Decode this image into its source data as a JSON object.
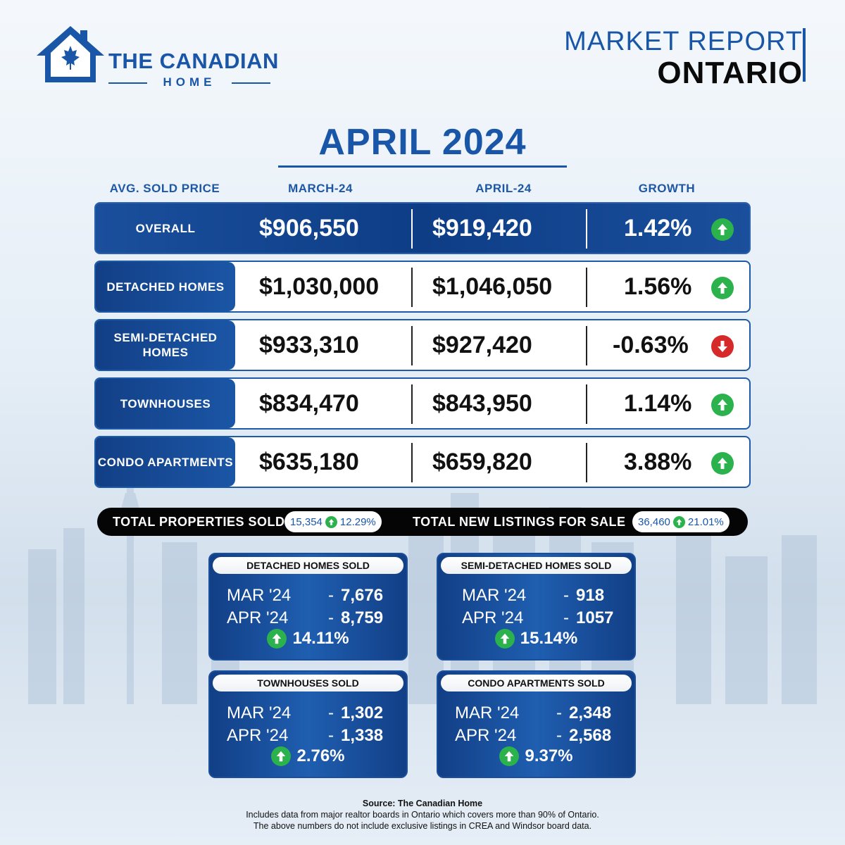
{
  "brand": {
    "line1": "THE CANADIAN",
    "line2": "HOME",
    "colors": {
      "primary": "#1a56a8",
      "up": "#2bb24c",
      "down": "#d62a2a"
    }
  },
  "report": {
    "line1": "MARKET REPORT",
    "line2": "ONTARIO"
  },
  "month": "APRIL 2024",
  "columns": {
    "label": "AVG. SOLD PRICE",
    "march": "MARCH-24",
    "april": "APRIL-24",
    "growth": "GROWTH"
  },
  "rows": [
    {
      "label": "OVERALL",
      "march": "$906,550",
      "april": "$919,420",
      "growth": "1.42%",
      "direction": "up"
    },
    {
      "label": "DETACHED HOMES",
      "march": "$1,030,000",
      "april": "$1,046,050",
      "growth": "1.56%",
      "direction": "up"
    },
    {
      "label": "SEMI-DETACHED HOMES",
      "march": "$933,310",
      "april": "$927,420",
      "growth": "-0.63%",
      "direction": "down"
    },
    {
      "label": "TOWNHOUSES",
      "march": "$834,470",
      "april": "$843,950",
      "growth": "1.14%",
      "direction": "up"
    },
    {
      "label": "CONDO APARTMENTS",
      "march": "$635,180",
      "april": "$659,820",
      "growth": "3.88%",
      "direction": "up"
    }
  ],
  "totals": {
    "sold_label": "TOTAL PROPERTIES SOLD",
    "sold_value": "15,354",
    "sold_growth": "12.29%",
    "listings_label": "TOTAL NEW LISTINGS FOR SALE",
    "listings_value": "36,460",
    "listings_growth": "21.01%"
  },
  "cards": [
    {
      "title": "DETACHED HOMES SOLD",
      "mar_label": "MAR '24",
      "mar_value": "7,676",
      "apr_label": "APR '24",
      "apr_value": "8,759",
      "growth": "14.11%"
    },
    {
      "title": "SEMI-DETACHED HOMES SOLD",
      "mar_label": "MAR '24",
      "mar_value": "918",
      "apr_label": "APR '24",
      "apr_value": "1057",
      "growth": "15.14%"
    },
    {
      "title": "TOWNHOUSES SOLD",
      "mar_label": "MAR '24",
      "mar_value": "1,302",
      "apr_label": "APR '24",
      "apr_value": "1,338",
      "growth": "2.76%"
    },
    {
      "title": "CONDO APARTMENTS SOLD",
      "mar_label": "MAR '24",
      "mar_value": "2,348",
      "apr_label": "APR '24",
      "apr_value": "2,568",
      "growth": "9.37%"
    }
  ],
  "footer": {
    "source": "Source: The Canadian Home",
    "line1": "Includes data from major realtor boards in Ontario which covers more than 90% of Ontario.",
    "line2": "The above numbers do not include exclusive listings in CREA and Windsor board data."
  }
}
